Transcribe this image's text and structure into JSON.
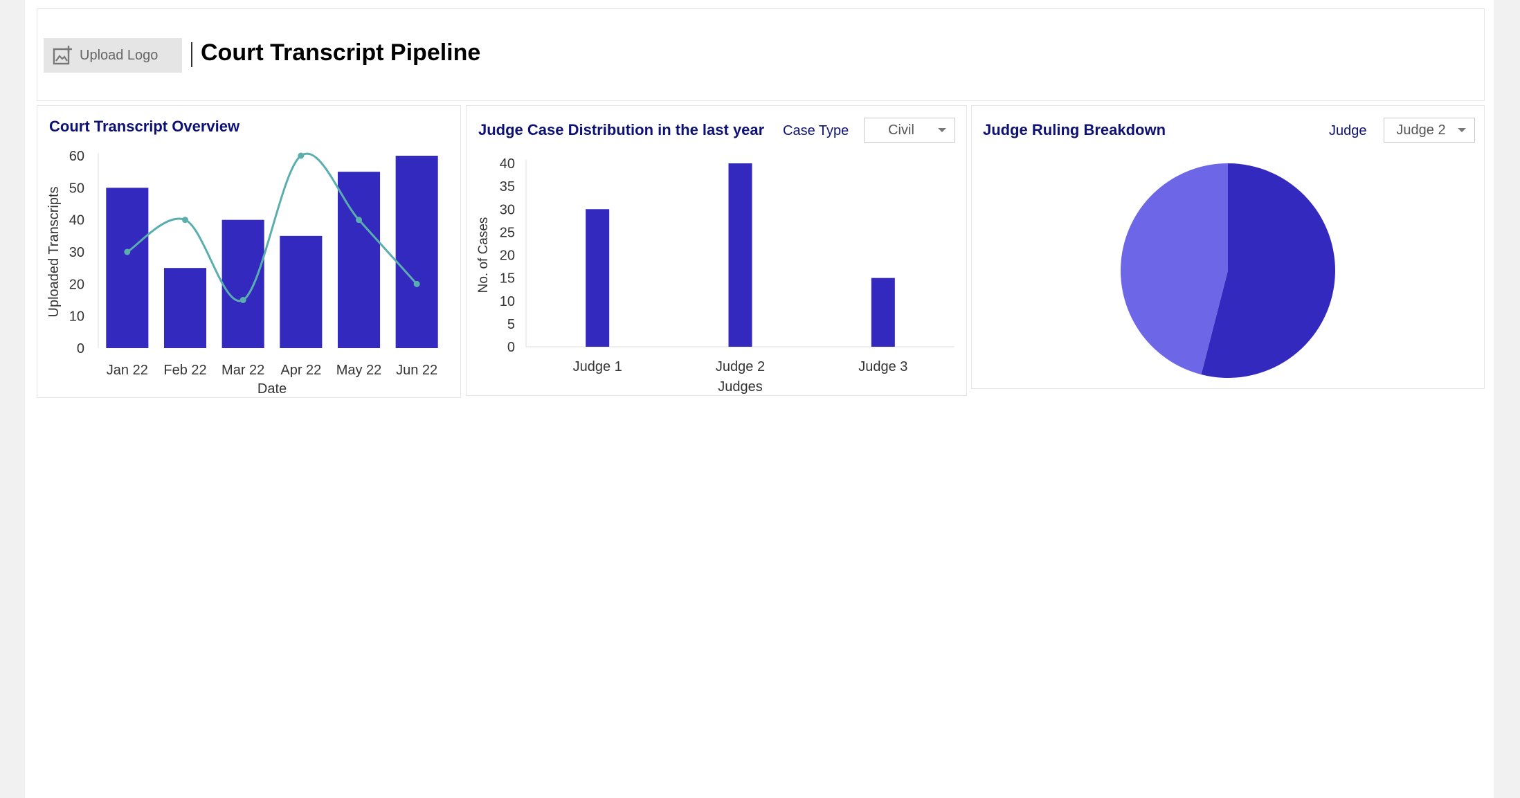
{
  "header": {
    "upload_label": "Upload Logo",
    "title": "Court Transcript Pipeline"
  },
  "card1": {
    "title": "Court Transcript Overview"
  },
  "card2": {
    "title": "Judge Case Distribution in the last year",
    "filter_label": "Case Type",
    "filter_value": "Civil"
  },
  "card3": {
    "title": "Judge Ruling Breakdown",
    "filter_label": "Judge",
    "filter_value": "Judge 2"
  },
  "colors": {
    "bar": "#3429bf",
    "line": "#5aaeae",
    "pie_light": "#6d67e8",
    "title": "#0d1173"
  },
  "chart_data": [
    {
      "type": "bar",
      "title": "Court Transcript Overview",
      "categories": [
        "Jan 22",
        "Feb 22",
        "Mar 22",
        "Apr 22",
        "May 22",
        "Jun 22"
      ],
      "series": [
        {
          "type": "bar",
          "values": [
            50,
            25,
            40,
            35,
            55,
            60
          ]
        },
        {
          "type": "line",
          "values": [
            30,
            40,
            15,
            60,
            40,
            20
          ]
        }
      ],
      "xlabel": "Date",
      "ylabel": "Uploaded Transcripts",
      "ylim": [
        0,
        60
      ],
      "yticks": [
        0,
        10,
        20,
        30,
        40,
        50,
        60
      ]
    },
    {
      "type": "bar",
      "title": "Judge Case Distribution in the last year",
      "categories": [
        "Judge 1",
        "Judge 2",
        "Judge 3"
      ],
      "values": [
        30,
        40,
        15
      ],
      "xlabel": "Judges",
      "ylabel": "No. of Cases",
      "ylim": [
        0,
        40
      ],
      "yticks": [
        0,
        5,
        10,
        15,
        20,
        25,
        30,
        35,
        40
      ]
    },
    {
      "type": "pie",
      "title": "Judge Ruling Breakdown",
      "slices": [
        {
          "value": 54
        },
        {
          "value": 46
        }
      ]
    }
  ]
}
